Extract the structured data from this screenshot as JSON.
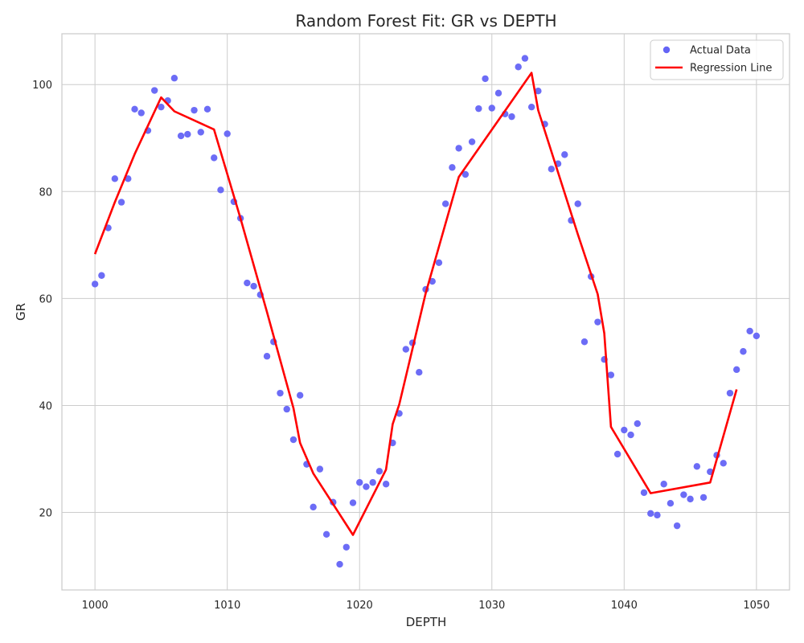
{
  "chart_data": {
    "type": "scatter",
    "title": "Random Forest Fit: GR vs DEPTH",
    "xlabel": "DEPTH",
    "ylabel": "GR",
    "xlim": [
      997.5,
      1052.5
    ],
    "ylim": [
      5.5,
      109.5
    ],
    "xticks": [
      1000,
      1010,
      1020,
      1030,
      1040,
      1050
    ],
    "yticks": [
      20,
      40,
      60,
      80,
      100
    ],
    "grid": true,
    "legend_position": "top-right",
    "series": [
      {
        "name": "Actual Data",
        "kind": "scatter",
        "color": "#6464f5",
        "points": [
          [
            1000.0,
            62.7
          ],
          [
            1000.5,
            64.3
          ],
          [
            1001.0,
            73.2
          ],
          [
            1001.5,
            82.4
          ],
          [
            1002.0,
            78.0
          ],
          [
            1002.5,
            82.4
          ],
          [
            1003.0,
            95.4
          ],
          [
            1003.5,
            94.7
          ],
          [
            1004.0,
            91.4
          ],
          [
            1004.5,
            98.9
          ],
          [
            1005.0,
            95.8
          ],
          [
            1005.5,
            97.0
          ],
          [
            1006.0,
            101.2
          ],
          [
            1006.5,
            90.4
          ],
          [
            1007.0,
            90.7
          ],
          [
            1007.5,
            95.2
          ],
          [
            1008.0,
            91.1
          ],
          [
            1008.5,
            95.4
          ],
          [
            1009.0,
            86.3
          ],
          [
            1009.5,
            80.3
          ],
          [
            1010.0,
            90.8
          ],
          [
            1010.5,
            78.1
          ],
          [
            1011.0,
            75.0
          ],
          [
            1011.5,
            62.9
          ],
          [
            1012.0,
            62.3
          ],
          [
            1012.5,
            60.7
          ],
          [
            1013.0,
            49.2
          ],
          [
            1013.5,
            51.9
          ],
          [
            1014.0,
            42.3
          ],
          [
            1014.5,
            39.3
          ],
          [
            1015.0,
            33.6
          ],
          [
            1015.5,
            41.9
          ],
          [
            1016.0,
            29.0
          ],
          [
            1016.5,
            21.0
          ],
          [
            1017.0,
            28.1
          ],
          [
            1017.5,
            15.9
          ],
          [
            1018.0,
            21.9
          ],
          [
            1018.5,
            10.3
          ],
          [
            1019.0,
            13.5
          ],
          [
            1019.5,
            21.8
          ],
          [
            1020.0,
            25.6
          ],
          [
            1020.5,
            24.8
          ],
          [
            1021.0,
            25.6
          ],
          [
            1021.5,
            27.7
          ],
          [
            1022.0,
            25.3
          ],
          [
            1022.5,
            33.0
          ],
          [
            1023.0,
            38.5
          ],
          [
            1023.5,
            50.5
          ],
          [
            1024.0,
            51.7
          ],
          [
            1024.5,
            46.2
          ],
          [
            1025.0,
            61.7
          ],
          [
            1025.5,
            63.2
          ],
          [
            1026.0,
            66.7
          ],
          [
            1026.5,
            77.7
          ],
          [
            1027.0,
            84.5
          ],
          [
            1027.5,
            88.1
          ],
          [
            1028.0,
            83.2
          ],
          [
            1028.5,
            89.3
          ],
          [
            1029.0,
            95.5
          ],
          [
            1029.5,
            101.1
          ],
          [
            1030.0,
            95.6
          ],
          [
            1030.5,
            98.4
          ],
          [
            1031.0,
            94.5
          ],
          [
            1031.5,
            94.0
          ],
          [
            1032.0,
            103.3
          ],
          [
            1032.5,
            104.9
          ],
          [
            1033.0,
            95.8
          ],
          [
            1033.5,
            98.8
          ],
          [
            1034.0,
            92.6
          ],
          [
            1034.5,
            84.2
          ],
          [
            1035.0,
            85.2
          ],
          [
            1035.5,
            86.9
          ],
          [
            1036.0,
            74.6
          ],
          [
            1036.5,
            77.7
          ],
          [
            1037.0,
            51.9
          ],
          [
            1037.5,
            64.1
          ],
          [
            1038.0,
            55.6
          ],
          [
            1038.5,
            48.6
          ],
          [
            1039.0,
            45.7
          ],
          [
            1039.5,
            30.9
          ],
          [
            1040.0,
            35.4
          ],
          [
            1040.5,
            34.5
          ],
          [
            1041.0,
            36.6
          ],
          [
            1041.5,
            23.7
          ],
          [
            1042.0,
            19.8
          ],
          [
            1042.5,
            19.5
          ],
          [
            1043.0,
            25.3
          ],
          [
            1043.5,
            21.7
          ],
          [
            1044.0,
            17.5
          ],
          [
            1044.5,
            23.3
          ],
          [
            1045.0,
            22.5
          ],
          [
            1045.5,
            28.6
          ],
          [
            1046.0,
            22.8
          ],
          [
            1046.5,
            27.6
          ],
          [
            1047.0,
            30.7
          ],
          [
            1047.5,
            29.2
          ],
          [
            1048.0,
            42.3
          ],
          [
            1048.5,
            46.7
          ],
          [
            1049.0,
            50.1
          ],
          [
            1049.5,
            53.9
          ],
          [
            1050.0,
            53.0
          ]
        ]
      },
      {
        "name": "Regression Line",
        "kind": "line",
        "color": "#ff0000",
        "points": [
          [
            1000.0,
            68.3
          ],
          [
            1001.5,
            78.0
          ],
          [
            1003.0,
            87.0
          ],
          [
            1005.0,
            97.6
          ],
          [
            1006.0,
            95.0
          ],
          [
            1009.0,
            91.6
          ],
          [
            1011.0,
            75.0
          ],
          [
            1013.0,
            57.5
          ],
          [
            1015.0,
            39.5
          ],
          [
            1015.5,
            33.0
          ],
          [
            1016.5,
            27.3
          ],
          [
            1019.5,
            15.8
          ],
          [
            1022.0,
            28.0
          ],
          [
            1022.5,
            36.5
          ],
          [
            1023.0,
            40.2
          ],
          [
            1025.0,
            61.0
          ],
          [
            1027.5,
            82.7
          ],
          [
            1033.0,
            102.2
          ],
          [
            1033.5,
            95.2
          ],
          [
            1036.5,
            72.0
          ],
          [
            1038.0,
            60.8
          ],
          [
            1038.5,
            53.5
          ],
          [
            1039.0,
            36.0
          ],
          [
            1042.0,
            23.6
          ],
          [
            1046.5,
            25.6
          ],
          [
            1048.5,
            43.0
          ]
        ]
      }
    ]
  }
}
